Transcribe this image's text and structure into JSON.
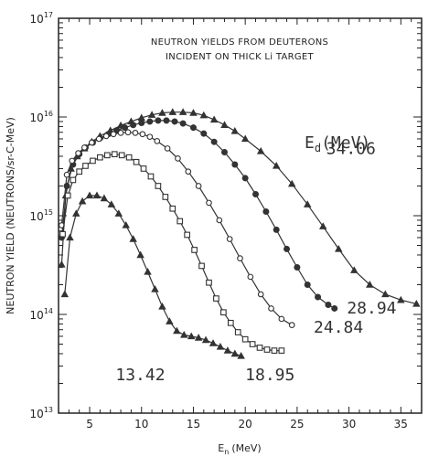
{
  "chart_data": {
    "type": "line",
    "title_lines": [
      "NEUTRON YIELDS FROM DEUTERONS",
      "INCIDENT ON THICK Li TARGET"
    ],
    "xlabel_main": "E",
    "xlabel_sub": "n",
    "xlabel_unit": "(MeV)",
    "ylabel": "NEUTRON YIELD (NEUTRONS/sr-C-MeV)",
    "xlim": [
      2,
      37
    ],
    "ylim": [
      10000000000000.0,
      1e+17
    ],
    "y_scale": "log",
    "x_ticks": [
      5,
      10,
      15,
      20,
      25,
      30,
      35
    ],
    "x_tick_labels": [
      "5",
      "10",
      "15",
      "20",
      "25",
      "30",
      "35"
    ],
    "y_ticks": [
      {
        "value": 10000000000000.0,
        "base": "10",
        "exp": "13"
      },
      {
        "value": 100000000000000.0,
        "base": "10",
        "exp": "14"
      },
      {
        "value": 1000000000000000.0,
        "base": "10",
        "exp": "15"
      },
      {
        "value": 1e+16,
        "base": "10",
        "exp": "16"
      },
      {
        "value": 1e+17,
        "base": "10",
        "exp": "17"
      }
    ],
    "legend_title": "E",
    "legend_title_sub": "d",
    "legend_title_unit": "(MeV)",
    "series": [
      {
        "name": "34.06",
        "marker": "triangle",
        "label_at": [
          27.8,
          4200000000000000.0
        ],
        "x": [
          2.3,
          2.7,
          3.2,
          3.8,
          4.5,
          5.2,
          6.0,
          7.0,
          8.0,
          9.0,
          10.0,
          11.0,
          12.0,
          13.0,
          14.0,
          15.0,
          16.0,
          17.0,
          18.0,
          19.0,
          20.0,
          21.5,
          23.0,
          24.5,
          26.0,
          27.5,
          29.0,
          30.5,
          32.0,
          33.5,
          35.0,
          36.5
        ],
        "y": [
          320000000000000.0,
          1600000000000000.0,
          3000000000000000.0,
          4000000000000000.0,
          4800000000000000.0,
          5600000000000000.0,
          6400000000000000.0,
          7300000000000000.0,
          8200000000000000.0,
          9000000000000000.0,
          9800000000000000.0,
          1.05e+16,
          1.1e+16,
          1.12e+16,
          1.12e+16,
          1.1e+16,
          1.04e+16,
          9400000000000000.0,
          8300000000000000.0,
          7200000000000000.0,
          6000000000000000.0,
          4500000000000000.0,
          3200000000000000.0,
          2100000000000000.0,
          1300000000000000.0,
          780000000000000.0,
          460000000000000.0,
          280000000000000.0,
          200000000000000.0,
          160000000000000.0,
          140000000000000.0,
          128000000000000.0
        ]
      },
      {
        "name": "28.94",
        "marker": "circle",
        "label_at": [
          29.8,
          102000000000000.0
        ],
        "x": [
          2.3,
          2.8,
          3.4,
          4.0,
          4.6,
          5.3,
          6.0,
          6.8,
          7.6,
          8.4,
          9.2,
          10.0,
          10.8,
          11.6,
          12.4,
          13.2,
          14.0,
          15.0,
          16.0,
          17.0,
          18.0,
          19.0,
          20.0,
          21.0,
          22.0,
          23.0,
          24.0,
          25.0,
          26.0,
          27.0,
          28.0,
          28.6
        ],
        "y": [
          600000000000000.0,
          2000000000000000.0,
          3300000000000000.0,
          4200000000000000.0,
          4900000000000000.0,
          5500000000000000.0,
          6100000000000000.0,
          6700000000000000.0,
          7300000000000000.0,
          7800000000000000.0,
          8300000000000000.0,
          8700000000000000.0,
          9000000000000000.0,
          9200000000000000.0,
          9200000000000000.0,
          9000000000000000.0,
          8600000000000000.0,
          7800000000000000.0,
          6800000000000000.0,
          5600000000000000.0,
          4400000000000000.0,
          3300000000000000.0,
          2400000000000000.0,
          1650000000000000.0,
          1100000000000000.0,
          720000000000000.0,
          460000000000000.0,
          300000000000000.0,
          200000000000000.0,
          150000000000000.0,
          125000000000000.0,
          115000000000000.0
        ]
      },
      {
        "name": "24.84",
        "marker": "circle-open",
        "label_at": [
          26.6,
          65000000000000.0
        ],
        "x": [
          2.3,
          2.8,
          3.3,
          3.9,
          4.5,
          5.2,
          5.9,
          6.6,
          7.3,
          8.0,
          8.7,
          9.4,
          10.1,
          10.8,
          11.5,
          12.5,
          13.5,
          14.5,
          15.5,
          16.5,
          17.5,
          18.5,
          19.5,
          20.5,
          21.5,
          22.5,
          23.5,
          24.5
        ],
        "y": [
          800000000000000.0,
          2600000000000000.0,
          3600000000000000.0,
          4300000000000000.0,
          4900000000000000.0,
          5500000000000000.0,
          6000000000000000.0,
          6400000000000000.0,
          6700000000000000.0,
          6900000000000000.0,
          7000000000000000.0,
          6900000000000000.0,
          6700000000000000.0,
          6300000000000000.0,
          5700000000000000.0,
          4800000000000000.0,
          3800000000000000.0,
          2800000000000000.0,
          2000000000000000.0,
          1350000000000000.0,
          900000000000000.0,
          580000000000000.0,
          370000000000000.0,
          240000000000000.0,
          160000000000000.0,
          115000000000000.0,
          90000000000000.0,
          78000000000000.0
        ]
      },
      {
        "name": "18.95",
        "marker": "square-open",
        "label_at": [
          20.0,
          21500000000000.0
        ],
        "x": [
          2.4,
          2.9,
          3.4,
          4.0,
          4.6,
          5.3,
          6.0,
          6.7,
          7.4,
          8.1,
          8.8,
          9.5,
          10.2,
          10.9,
          11.6,
          12.3,
          13.0,
          13.7,
          14.4,
          15.1,
          15.8,
          16.5,
          17.2,
          17.9,
          18.6,
          19.3,
          20.0,
          20.7,
          21.4,
          22.1,
          22.8,
          23.5
        ],
        "y": [
          650000000000000.0,
          1600000000000000.0,
          2300000000000000.0,
          2800000000000000.0,
          3200000000000000.0,
          3600000000000000.0,
          3900000000000000.0,
          4100000000000000.0,
          4200000000000000.0,
          4100000000000000.0,
          3900000000000000.0,
          3500000000000000.0,
          3000000000000000.0,
          2500000000000000.0,
          2000000000000000.0,
          1550000000000000.0,
          1180000000000000.0,
          880000000000000.0,
          640000000000000.0,
          450000000000000.0,
          310000000000000.0,
          210000000000000.0,
          145000000000000.0,
          105000000000000.0,
          82000000000000.0,
          66000000000000.0,
          56000000000000.0,
          50000000000000.0,
          46000000000000.0,
          44000000000000.0,
          43000000000000.0,
          43000000000000.0
        ]
      },
      {
        "name": "13.42",
        "marker": "triangle",
        "label_at": [
          7.5,
          21500000000000.0
        ],
        "x": [
          2.6,
          3.1,
          3.7,
          4.3,
          5.0,
          5.7,
          6.4,
          7.1,
          7.8,
          8.5,
          9.2,
          9.9,
          10.6,
          11.3,
          12.0,
          12.7,
          13.4,
          14.1,
          14.8,
          15.5,
          16.2,
          16.9,
          17.6,
          18.3,
          19.0,
          19.6
        ],
        "y": [
          160000000000000.0,
          600000000000000.0,
          1050000000000000.0,
          1400000000000000.0,
          1600000000000000.0,
          1600000000000000.0,
          1500000000000000.0,
          1300000000000000.0,
          1050000000000000.0,
          800000000000000.0,
          580000000000000.0,
          400000000000000.0,
          270000000000000.0,
          180000000000000.0,
          120000000000000.0,
          85000000000000.0,
          68000000000000.0,
          62000000000000.0,
          60000000000000.0,
          58000000000000.0,
          55000000000000.0,
          51000000000000.0,
          47000000000000.0,
          43000000000000.0,
          40000000000000.0,
          38000000000000.0
        ]
      }
    ]
  }
}
